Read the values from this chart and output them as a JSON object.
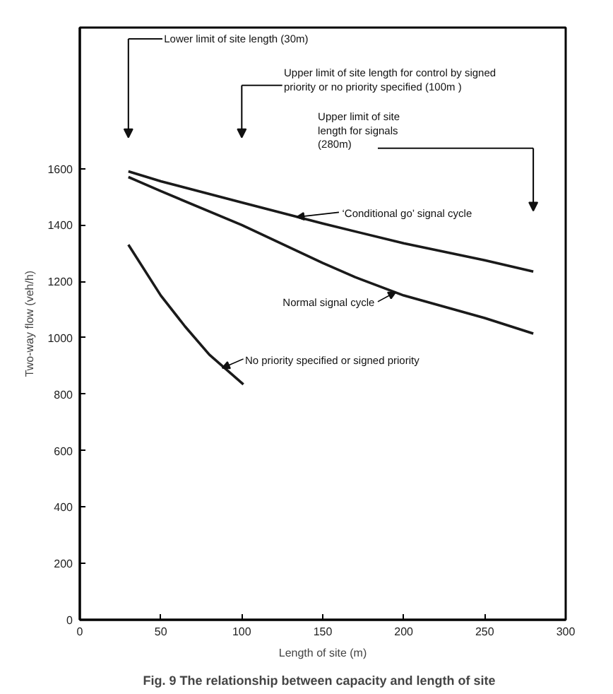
{
  "chart_data": {
    "type": "line",
    "title": "Fig. 9   The relationship between capacity and length of site",
    "xlabel": "Length of site (m)",
    "ylabel": "Two-way flow (veh/h)",
    "xlim": [
      0,
      300
    ],
    "xticks": [
      0,
      50,
      100,
      150,
      200,
      250,
      300
    ],
    "ylim": [
      0,
      2100
    ],
    "yticks": [
      0,
      200,
      400,
      600,
      800,
      1000,
      1200,
      1400,
      1600
    ],
    "grid": false,
    "marker": "none",
    "line_style": "solid",
    "series": [
      {
        "color": "#1a1a1a",
        "x": [
          30,
          50,
          100,
          150,
          200,
          250,
          280
        ],
        "values": [
          1590,
          1555,
          1480,
          1405,
          1335,
          1275,
          1235
        ]
      },
      {
        "color": "#1a1a1a",
        "x": [
          30,
          50,
          100,
          150,
          170,
          200,
          250,
          280
        ],
        "values": [
          1570,
          1520,
          1400,
          1265,
          1215,
          1150,
          1070,
          1015
        ]
      },
      {
        "color": "#1a1a1a",
        "x": [
          30,
          50,
          65,
          80,
          90,
          101
        ],
        "values": [
          1330,
          1150,
          1040,
          940,
          890,
          835
        ]
      }
    ],
    "annotations": [
      "Lower limit of site length (30m)",
      "Upper limit of site length for control by signed\npriority or no priority specified (100m )",
      "Upper limit of site\nlength for signals\n(280m)",
      {
        "text": "‘Conditional go’ signal cycle",
        "x": 134,
        "y": 1428
      },
      {
        "text": "Normal signal cycle",
        "x": 195,
        "y": 1162
      },
      {
        "text": "No priority specified or signed priority",
        "x": 88,
        "y": 893
      }
    ]
  }
}
